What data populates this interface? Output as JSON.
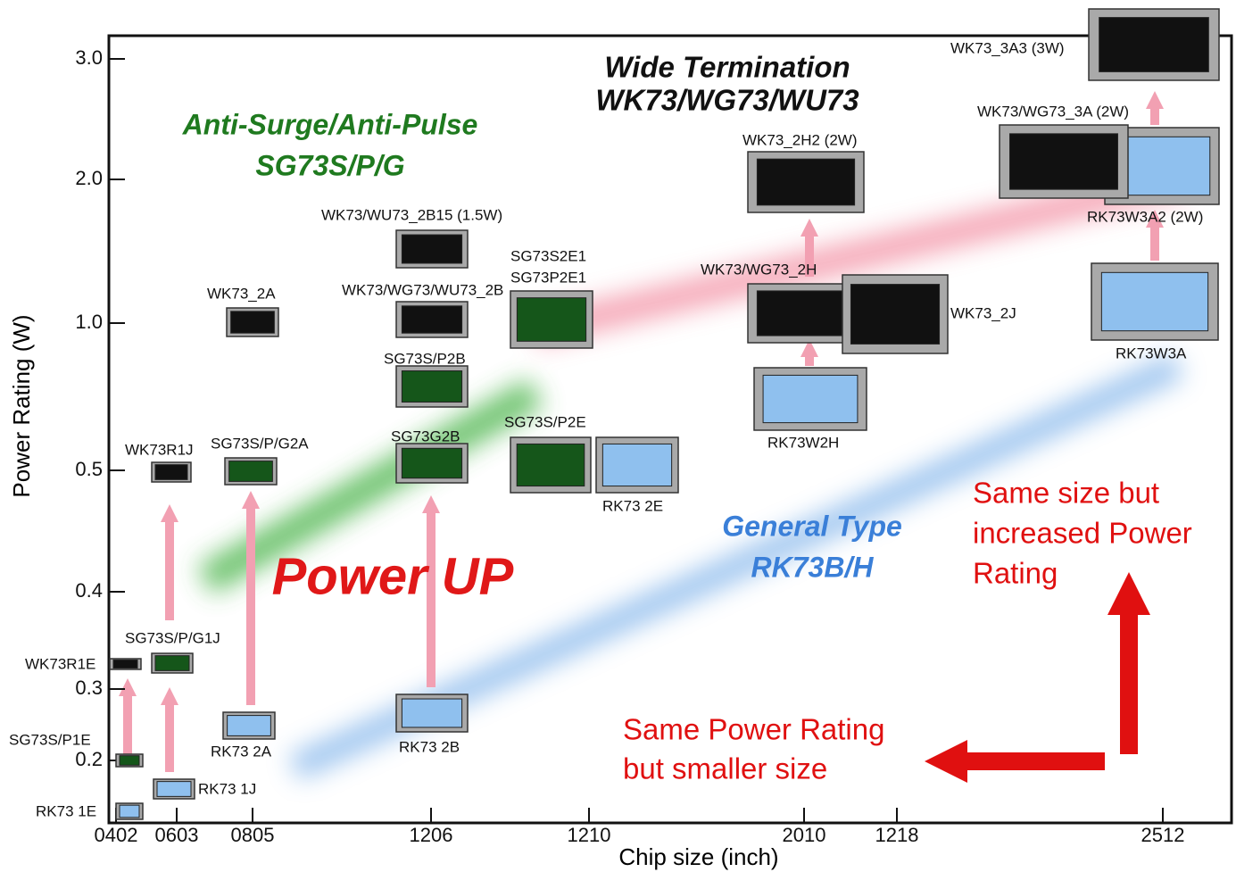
{
  "axis": {
    "y_title": "Power Rating (W)",
    "x_title": "Chip size (inch)",
    "y_ticks": [
      "3.0",
      "2.0",
      "1.0",
      "0.5",
      "0.4",
      "0.3",
      "0.2"
    ],
    "x_ticks": [
      "0402",
      "0603",
      "0805",
      "1206",
      "1210",
      "2010",
      "1218",
      "2512"
    ]
  },
  "headings": [
    {
      "lines": [
        "Wide Termination",
        "WK73/WG73/WU73"
      ]
    },
    {
      "lines": [
        "Anti-Surge/Anti-Pulse",
        "SG73S/P/G"
      ]
    },
    {
      "lines": [
        "General Type",
        "RK73B/H"
      ]
    },
    {
      "lines": [
        "Power UP"
      ]
    },
    {
      "lines": [
        "Same size but",
        "increased Power",
        "Rating"
      ]
    },
    {
      "lines": [
        "Same Power Rating",
        "but smaller size"
      ]
    }
  ],
  "parts": [
    {
      "lines": [
        "RK73 1E"
      ]
    },
    {
      "lines": [
        "SG73S/P1E"
      ]
    },
    {
      "lines": [
        "WK73R1E"
      ]
    },
    {
      "lines": [
        "RK73 1J"
      ]
    },
    {
      "lines": [
        "SG73S/P/G1J"
      ]
    },
    {
      "lines": [
        "WK73R1J"
      ]
    },
    {
      "lines": [
        "RK73 2A"
      ]
    },
    {
      "lines": [
        "SG73S/P/G2A"
      ]
    },
    {
      "lines": [
        "WK73_2A"
      ]
    },
    {
      "lines": [
        "RK73 2B"
      ]
    },
    {
      "lines": [
        "SG73G2B"
      ]
    },
    {
      "lines": [
        "SG73S/P2B"
      ]
    },
    {
      "lines": [
        "WK73/WG73/WU73_2B"
      ]
    },
    {
      "lines": [
        "WK73/WU73_2B15 (1.5W)"
      ]
    },
    {
      "lines": [
        "SG73S/P2E"
      ]
    },
    {
      "lines": [
        "RK73 2E"
      ]
    },
    {
      "lines": [
        "SG73S2E1",
        "SG73P2E1"
      ]
    },
    {
      "lines": [
        "RK73W2H"
      ]
    },
    {
      "lines": [
        "WK73/WG73_2H"
      ]
    },
    {
      "lines": [
        "WK73_2J"
      ]
    },
    {
      "lines": [
        "WK73_2H2 (2W)"
      ]
    },
    {
      "lines": [
        "RK73W3A"
      ]
    },
    {
      "lines": [
        "RK73W3A2 (2W)"
      ]
    },
    {
      "lines": [
        "WK73/WG73_3A (2W)"
      ]
    },
    {
      "lines": [
        "WK73_3A3 (3W)"
      ]
    }
  ]
}
